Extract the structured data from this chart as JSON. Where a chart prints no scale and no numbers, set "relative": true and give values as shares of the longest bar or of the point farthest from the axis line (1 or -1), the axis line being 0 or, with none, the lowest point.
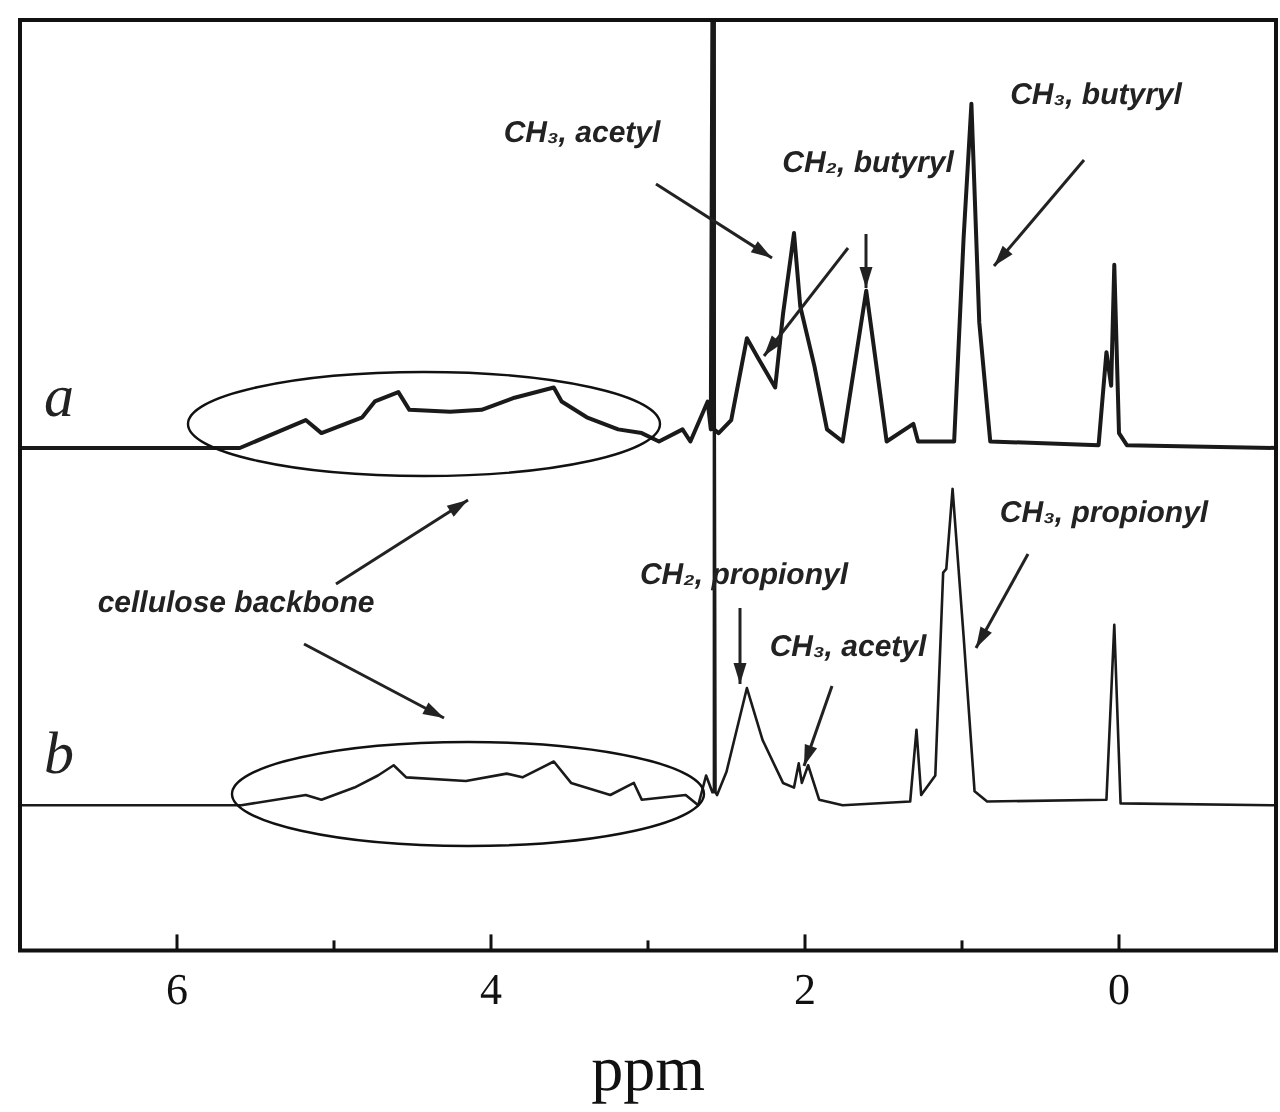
{
  "chart_data": {
    "type": "line",
    "relative": true,
    "xlabel": "ppm",
    "xlim": [
      7,
      -1
    ],
    "xticks": [
      6,
      {
        "value": 5,
        "label": null
      },
      4,
      {
        "value": 3,
        "label": null
      },
      2,
      {
        "value": 1,
        "label": null
      },
      0
    ],
    "x": [
      7,
      5.6,
      5.18,
      5.08,
      4.82,
      4.74,
      4.59,
      4.52,
      4.26,
      4.06,
      3.85,
      3.6,
      3.55,
      3.39,
      3.19,
      3.04,
      2.93,
      2.78,
      2.73,
      2.62,
      2.6,
      2.59,
      2.58,
      2.55,
      2.47,
      2.37,
      2.3,
      2.19,
      2.14,
      2.07,
      2.03,
      1.94,
      1.86,
      1.76,
      1.61,
      1.48,
      1.31,
      1.28,
      1.05,
      0.99,
      0.94,
      0.89,
      0.82,
      0.13,
      0.08,
      0.05,
      0.03,
      0,
      -0.05,
      -1
    ],
    "series": [
      {
        "name": "a",
        "color": "#1a1a1a",
        "values": [
          0.54,
          0.54,
          0.57,
          0.556,
          0.573,
          0.59,
          0.6,
          0.581,
          0.579,
          0.581,
          0.594,
          0.605,
          0.59,
          0.573,
          0.56,
          0.556,
          0.547,
          0.56,
          0.547,
          0.59,
          0.56,
          1.0,
          0.56,
          0.556,
          0.57,
          0.658,
          0.637,
          0.605,
          0.684,
          0.771,
          0.692,
          0.628,
          0.56,
          0.547,
          0.709,
          0.547,
          0.566,
          0.547,
          0.547,
          0.765,
          0.91,
          0.675,
          0.547,
          0.543,
          0.643,
          0.607,
          0.737,
          0.556,
          0.543,
          0.54
        ]
      },
      {
        "name": "b",
        "color": "#1a1a1a",
        "x": [
          7,
          5.59,
          5.18,
          5.08,
          4.87,
          4.72,
          4.62,
          4.54,
          4.16,
          3.9,
          3.8,
          3.6,
          3.49,
          3.24,
          3.09,
          3.04,
          2.76,
          2.68,
          2.63,
          2.59,
          2.58,
          2.57,
          2.56,
          2.5,
          2.37,
          2.27,
          2.14,
          2.07,
          2.04,
          2.02,
          1.98,
          1.91,
          1.76,
          1.33,
          1.29,
          1.26,
          1.17,
          1.12,
          1.1,
          1.06,
          0.99,
          0.92,
          0.84,
          0.08,
          0.03,
          -0.01,
          -1
        ],
        "values": [
          0.156,
          0.156,
          0.167,
          0.162,
          0.175,
          0.188,
          0.199,
          0.186,
          0.182,
          0.19,
          0.186,
          0.203,
          0.18,
          0.167,
          0.18,
          0.162,
          0.167,
          0.156,
          0.188,
          0.17,
          1.0,
          0.17,
          0.167,
          0.192,
          0.282,
          0.226,
          0.18,
          0.175,
          0.201,
          0.18,
          0.199,
          0.162,
          0.156,
          0.16,
          0.237,
          0.167,
          0.188,
          0.406,
          0.41,
          0.496,
          0.338,
          0.171,
          0.16,
          0.162,
          0.35,
          0.158,
          0.156
        ]
      }
    ],
    "annotations": [
      "CH₃, acetyl",
      "CH₂, butyryl",
      "CH₃, butyryl",
      "cellulose backbone",
      "CH₂, propionyl",
      "CH₃, acetyl",
      "CH₃, propionyl"
    ],
    "grid": false,
    "legend": false,
    "marker": "none",
    "line_style": "solid",
    "tick_labels": "x"
  }
}
